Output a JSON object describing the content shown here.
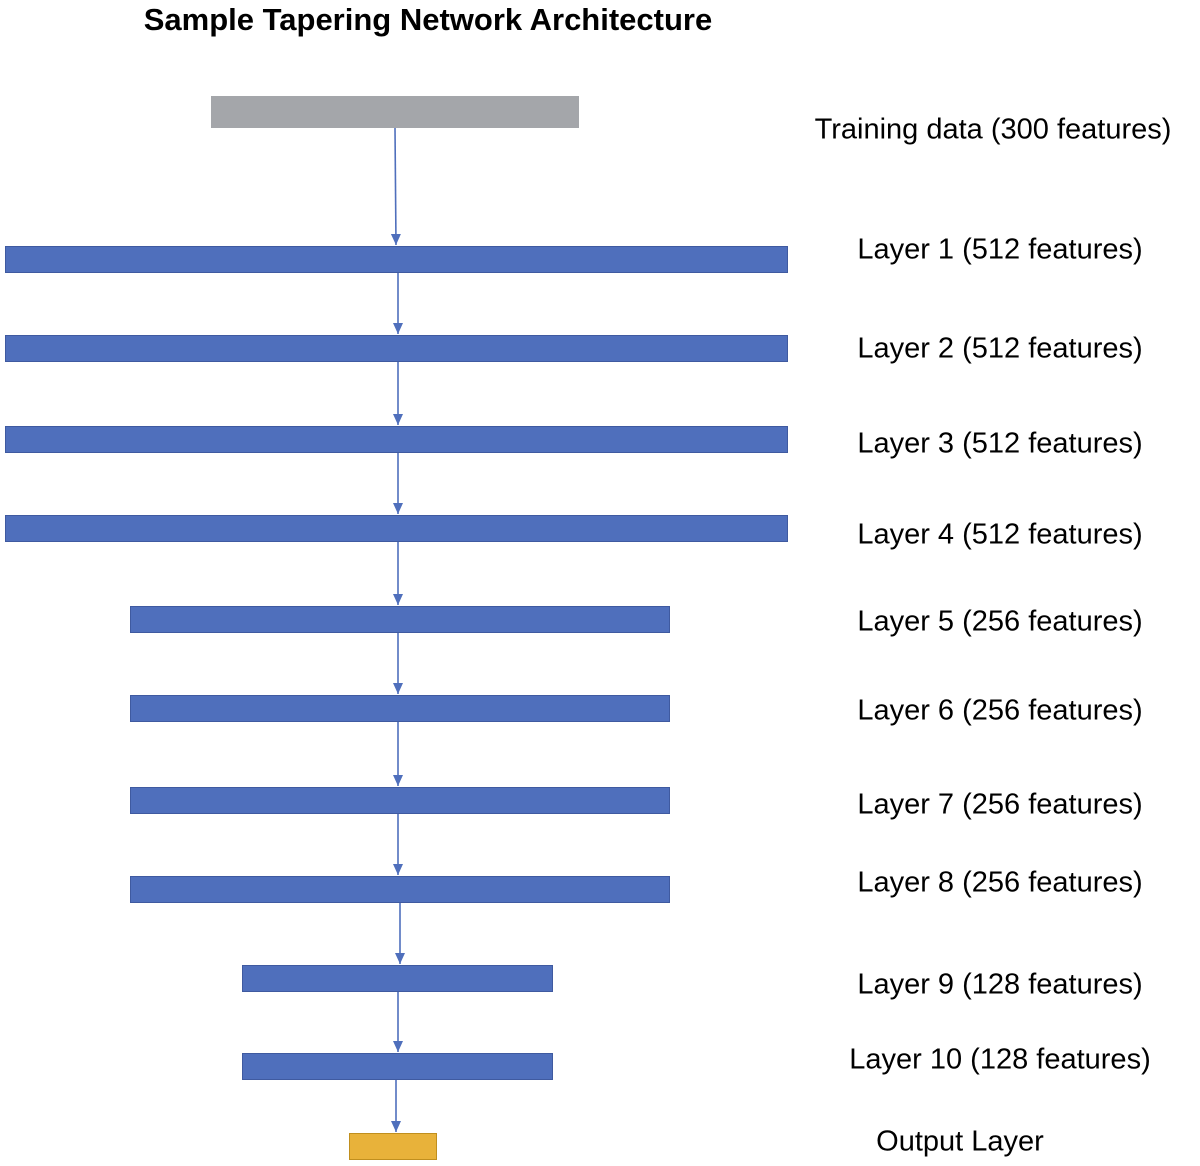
{
  "title": "Sample Tapering Network Architecture",
  "colors": {
    "input": "#a4a6aa",
    "hidden": "#4f6fbc",
    "output": "#e8b23a",
    "arrow": "#4f6fbc"
  },
  "layers": [
    {
      "name": "input-layer",
      "kind": "input",
      "features": 300,
      "label": "Training data (300 features)"
    },
    {
      "name": "layer-1",
      "kind": "hidden",
      "features": 512,
      "label": "Layer 1 (512 features)"
    },
    {
      "name": "layer-2",
      "kind": "hidden",
      "features": 512,
      "label": "Layer 2 (512 features)"
    },
    {
      "name": "layer-3",
      "kind": "hidden",
      "features": 512,
      "label": "Layer 3 (512 features)"
    },
    {
      "name": "layer-4",
      "kind": "hidden",
      "features": 512,
      "label": "Layer 4 (512 features)"
    },
    {
      "name": "layer-5",
      "kind": "hidden",
      "features": 256,
      "label": "Layer 5 (256 features)"
    },
    {
      "name": "layer-6",
      "kind": "hidden",
      "features": 256,
      "label": "Layer 6 (256 features)"
    },
    {
      "name": "layer-7",
      "kind": "hidden",
      "features": 256,
      "label": "Layer 7 (256 features)"
    },
    {
      "name": "layer-8",
      "kind": "hidden",
      "features": 256,
      "label": "Layer 8 (256 features)"
    },
    {
      "name": "layer-9",
      "kind": "hidden",
      "features": 128,
      "label": "Layer 9 (128 features)"
    },
    {
      "name": "layer-10",
      "kind": "hidden",
      "features": 128,
      "label": "Layer 10 (128 features)"
    },
    {
      "name": "output-layer",
      "kind": "output",
      "features": null,
      "label": "Output Layer"
    }
  ]
}
